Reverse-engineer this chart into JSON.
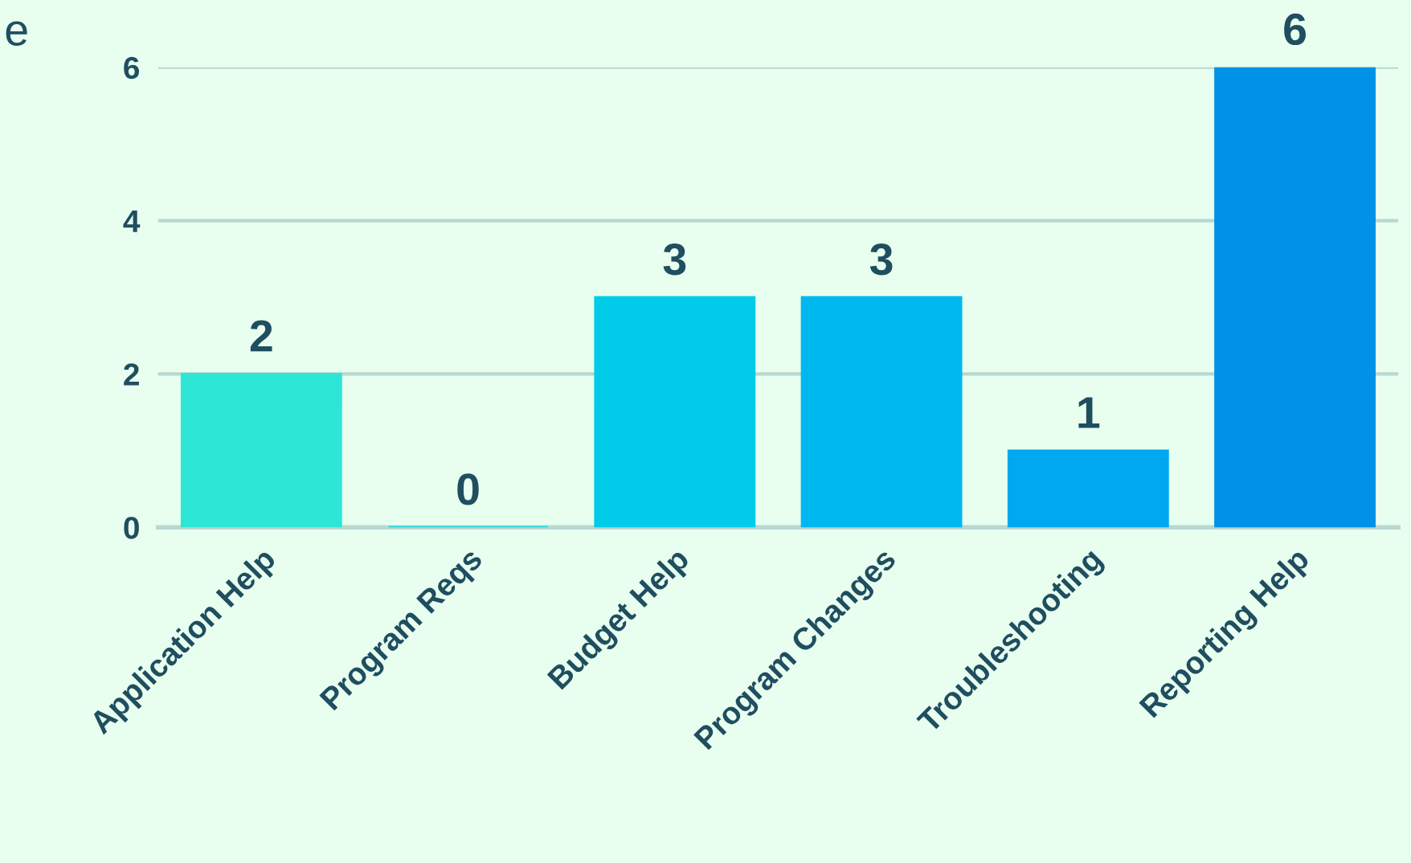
{
  "chart_data": {
    "type": "bar",
    "categories": [
      "Application Help",
      "Program Reqs",
      "Budget Help",
      "Program Changes",
      "Troubleshooting",
      "Reporting Help"
    ],
    "values": [
      2,
      0,
      3,
      3,
      1,
      6
    ],
    "colors": [
      "#2ee6d6",
      "#14d8e4",
      "#00cbe8",
      "#00b8f0",
      "#00a8f0",
      "#0092e6"
    ],
    "ylim": [
      0,
      6
    ],
    "yticks": [
      0,
      2,
      4,
      6
    ],
    "grid": "y",
    "data_labels": true,
    "annotations": [
      "e"
    ]
  }
}
